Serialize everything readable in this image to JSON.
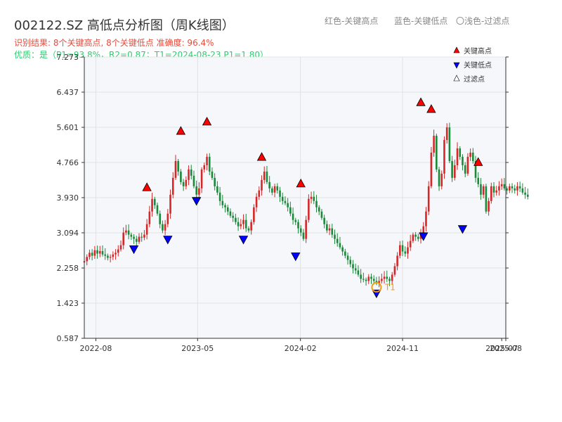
{
  "header": {
    "title": "002122.SZ 高低点分析图（周K线图）",
    "legend_red": "红色-关键高点",
    "legend_blue": "蓝色-关键低点",
    "legend_filter": "〇浅色-过滤点",
    "result_line": "识别结果: 8个关键高点, 8个关键低点  准确度: 96.4%",
    "quality_line": "优质：是（P1=93.8%，R2=0.87；T1=2024-08-23 P1=1.80）"
  },
  "colors": {
    "up": "#d62728",
    "down": "#1a8a3a",
    "high_marker": "#ff0000",
    "low_marker": "#0000ff",
    "t1_marker": "#f39c12",
    "plot_bg": "#f5f7fa",
    "grid": "#dddddd"
  },
  "chart_data": {
    "type": "candlestick",
    "x_axis": {
      "range": [
        "2022-07",
        "2025-08"
      ],
      "tick_labels": [
        "2022-08",
        "2023-05",
        "2024-02",
        "2024-11",
        "2025-07",
        "2025-08"
      ]
    },
    "y_axis": {
      "range": [
        0.587,
        7.273
      ],
      "tick_labels": [
        "0.587",
        "1.423",
        "2.258",
        "3.094",
        "3.930",
        "4.766",
        "5.601",
        "6.437",
        "7.273"
      ]
    },
    "grid": true,
    "legend_position": "top-right",
    "legend": [
      {
        "label": "关键高点",
        "marker": "triangle-up",
        "color": "#ff0000"
      },
      {
        "label": "关键低点",
        "marker": "triangle-down",
        "color": "#0000ff"
      },
      {
        "label": "过滤点",
        "marker": "triangle-up-outline",
        "color": "#888888"
      }
    ],
    "key_highs": [
      {
        "date": "2022-12-16",
        "value": 4.06
      },
      {
        "date": "2023-03-17",
        "value": 5.4
      },
      {
        "date": "2023-05-26",
        "value": 5.62
      },
      {
        "date": "2023-10-20",
        "value": 4.78
      },
      {
        "date": "2024-02-02",
        "value": 4.15
      },
      {
        "date": "2024-12-20",
        "value": 6.08
      },
      {
        "date": "2025-01-17",
        "value": 5.92
      },
      {
        "date": "2025-05-23",
        "value": 4.66
      }
    ],
    "key_lows": [
      {
        "date": "2022-11-11",
        "value": 2.82
      },
      {
        "date": "2023-02-10",
        "value": 3.05
      },
      {
        "date": "2023-04-28",
        "value": 3.97
      },
      {
        "date": "2023-09-01",
        "value": 3.05
      },
      {
        "date": "2024-01-19",
        "value": 2.65
      },
      {
        "date": "2024-08-23",
        "value": 1.77
      },
      {
        "date": "2024-12-27",
        "value": 3.13
      },
      {
        "date": "2025-04-11",
        "value": 3.3
      }
    ],
    "t1": {
      "date": "2024-08-23",
      "value": 1.8,
      "label": "T1"
    },
    "weekly": {
      "start_date": "2022-07-01",
      "closes": [
        2.42,
        2.52,
        2.62,
        2.55,
        2.68,
        2.6,
        2.66,
        2.58,
        2.55,
        2.5,
        2.52,
        2.58,
        2.62,
        2.7,
        2.8,
        3.1,
        3.15,
        3.05,
        3.0,
        2.95,
        2.88,
        3.0,
        2.98,
        3.05,
        3.3,
        3.6,
        3.9,
        3.75,
        3.55,
        3.3,
        3.15,
        3.3,
        3.55,
        4.0,
        4.4,
        4.8,
        4.55,
        4.3,
        4.2,
        4.35,
        4.6,
        4.45,
        4.2,
        4.0,
        4.15,
        4.6,
        4.7,
        4.9,
        4.55,
        4.4,
        4.2,
        4.05,
        3.85,
        3.75,
        3.7,
        3.6,
        3.5,
        3.45,
        3.35,
        3.25,
        3.3,
        3.4,
        3.2,
        3.15,
        3.35,
        3.7,
        3.95,
        4.1,
        4.35,
        4.55,
        4.3,
        4.15,
        4.05,
        4.2,
        4.1,
        3.95,
        3.85,
        3.8,
        3.7,
        3.55,
        3.4,
        3.35,
        3.2,
        3.1,
        2.95,
        3.4,
        3.9,
        3.95,
        3.85,
        3.7,
        3.6,
        3.45,
        3.3,
        3.15,
        3.2,
        3.05,
        2.95,
        2.85,
        2.75,
        2.65,
        2.55,
        2.45,
        2.35,
        2.25,
        2.2,
        2.1,
        2.0,
        1.98,
        1.95,
        2.05,
        2.0,
        1.95,
        1.9,
        1.95,
        2.0,
        2.05,
        2.0,
        1.95,
        2.1,
        2.3,
        2.55,
        2.8,
        2.65,
        2.6,
        2.75,
        2.9,
        3.05,
        3.0,
        2.95,
        3.1,
        3.25,
        3.6,
        4.2,
        5.0,
        5.4,
        4.6,
        4.2,
        4.5,
        5.3,
        5.6,
        4.8,
        4.4,
        4.7,
        5.1,
        4.9,
        4.7,
        4.5,
        4.9,
        5.0,
        4.8,
        4.4,
        4.25,
        4.0,
        4.2,
        3.6,
        3.85,
        4.2,
        4.05,
        4.1,
        4.2,
        4.25,
        4.15,
        4.1,
        4.2,
        4.15,
        4.1,
        4.2,
        4.15,
        4.05,
        4.0,
        3.95
      ]
    }
  }
}
